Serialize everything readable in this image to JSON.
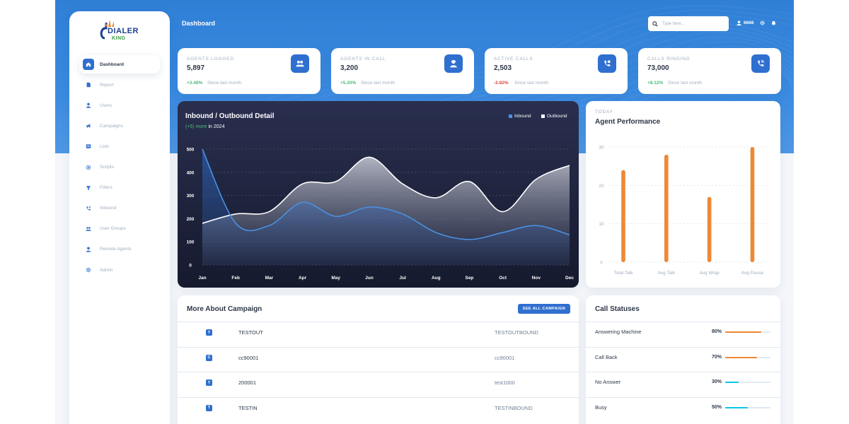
{
  "logo": {
    "line1": "DIALER",
    "line2": "KING"
  },
  "sidebar": {
    "items": [
      {
        "label": "Dashboard",
        "icon": "home-icon",
        "active": true
      },
      {
        "label": "Report",
        "icon": "document-icon"
      },
      {
        "label": "Users",
        "icon": "user-icon"
      },
      {
        "label": "Campaigns",
        "icon": "megaphone-icon"
      },
      {
        "label": "Lists",
        "icon": "list-icon"
      },
      {
        "label": "Scripts",
        "icon": "gear-icon"
      },
      {
        "label": "Filters",
        "icon": "filter-icon"
      },
      {
        "label": "Inbound",
        "icon": "phone-incoming-icon"
      },
      {
        "label": "User Groups",
        "icon": "users-icon"
      },
      {
        "label": "Remote Agents",
        "icon": "agent-icon"
      },
      {
        "label": "Admin",
        "icon": "settings-icon"
      }
    ]
  },
  "header": {
    "title": "Dashboard",
    "search_placeholder": "Type here...",
    "user_label": "6666"
  },
  "stats": [
    {
      "label": "AGENTS LOGGED",
      "value": "5,897",
      "change": "+3.48%",
      "change_color": "#48bb78",
      "since": "Since last month",
      "icon": "users-icon"
    },
    {
      "label": "AGENTS IN CALL",
      "value": "3,200",
      "change": "+5.20%",
      "change_color": "#48bb78",
      "since": "Since last month",
      "icon": "agent-icon"
    },
    {
      "label": "ACTIVE CALLS",
      "value": "2,503",
      "change": "-2.82%",
      "change_color": "#e53e3e",
      "since": "Since last month",
      "icon": "phone-call-icon"
    },
    {
      "label": "CALLS RINGING",
      "value": "73,000",
      "change": "+8.12%",
      "change_color": "#48bb78",
      "since": "Since last month",
      "icon": "phone-ringing-icon"
    }
  ],
  "inout": {
    "title": "Inbound / Outbound Detail",
    "sub_highlight": "(+5) more",
    "sub_rest": " in 2024",
    "legend": [
      {
        "name": "Inbound",
        "color": "#4a90e2"
      },
      {
        "name": "Outbound",
        "color": "#ffffff"
      }
    ]
  },
  "perf": {
    "today": "TODAY",
    "title": "Agent Performance"
  },
  "chart_data": [
    {
      "type": "area",
      "title": "Inbound / Outbound Detail",
      "categories": [
        "Jan",
        "Feb",
        "Mar",
        "Apr",
        "May",
        "Jun",
        "Jul",
        "Aug",
        "Sep",
        "Oct",
        "Nov",
        "Dec"
      ],
      "series": [
        {
          "name": "Inbound",
          "values": [
            500,
            180,
            170,
            270,
            210,
            250,
            220,
            140,
            110,
            140,
            170,
            130
          ]
        },
        {
          "name": "Outbound",
          "values": [
            180,
            220,
            230,
            350,
            360,
            465,
            350,
            290,
            360,
            230,
            370,
            430
          ]
        }
      ],
      "ylim": [
        0,
        500
      ],
      "yticks": [
        0,
        100,
        200,
        300,
        400,
        500
      ],
      "grid": true,
      "legend_position": "top-right"
    },
    {
      "type": "bar",
      "title": "Agent Performance",
      "categories": [
        "Total Talk",
        "Avg Talk",
        "Avg Wrap",
        "Avg Pause"
      ],
      "values": [
        24,
        28,
        17,
        30
      ],
      "ylim": [
        0,
        30
      ],
      "yticks": [
        0,
        10,
        20,
        30
      ],
      "bar_color": "#ed8936",
      "grid": true
    }
  ],
  "campaign": {
    "title": "More About Campaign",
    "button": "SEE ALL CAMPAIGN",
    "rows": [
      {
        "badge": "T",
        "name": "TESTOUT",
        "desc": "TESTOUTBOUND"
      },
      {
        "badge": "C",
        "name": "cc90001",
        "desc": "cc90001"
      },
      {
        "badge": "T",
        "name": "200001",
        "desc": "test1000"
      },
      {
        "badge": "T",
        "name": "TESTIN",
        "desc": "TESTINBOUND"
      }
    ]
  },
  "call_statuses": {
    "title": "Call Statuses",
    "rows": [
      {
        "name": "Answering Machine",
        "percent": "80%",
        "value": 0.8,
        "color": "#ed8936"
      },
      {
        "name": "Call Back",
        "percent": "70%",
        "value": 0.7,
        "color": "#ed8936"
      },
      {
        "name": "No Answer",
        "percent": "30%",
        "value": 0.3,
        "color": "#0bc5ea"
      },
      {
        "name": "Busy",
        "percent": "50%",
        "value": 0.5,
        "color": "#0bc5ea"
      }
    ]
  }
}
